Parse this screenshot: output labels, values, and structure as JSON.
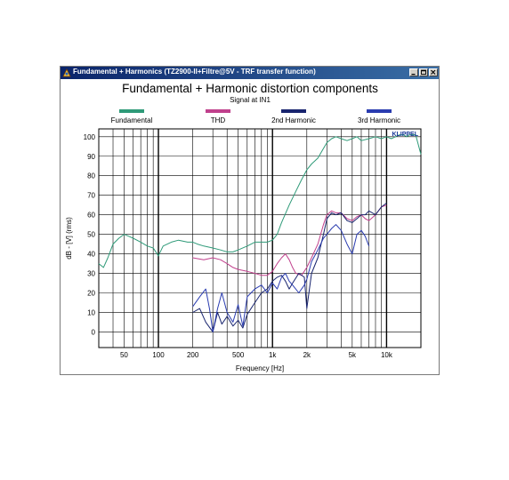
{
  "window": {
    "title": "Fundamental + Harmonics (TZ2900-II+Filtre@5V - TRF transfer function)",
    "buttons": {
      "minimize": "_",
      "maximize": "□",
      "close": "×"
    }
  },
  "logo": "KLIPPEL",
  "chart_data": {
    "type": "line",
    "title": "Fundamental + Harmonic distortion components",
    "subtitle": "Signal at IN1",
    "xlabel": "Frequency [Hz]",
    "ylabel": "dB - [V]  (rms)",
    "xscale": "log",
    "xlim": [
      30,
      20000
    ],
    "ylim": [
      -8,
      104
    ],
    "grid": true,
    "legend_position": "top",
    "x_ticks": [
      {
        "value": 50,
        "label": "50"
      },
      {
        "value": 100,
        "label": "100"
      },
      {
        "value": 200,
        "label": "200"
      },
      {
        "value": 500,
        "label": "500"
      },
      {
        "value": 1000,
        "label": "1k"
      },
      {
        "value": 2000,
        "label": "2k"
      },
      {
        "value": 5000,
        "label": "5k"
      },
      {
        "value": 10000,
        "label": "10k"
      }
    ],
    "y_ticks": [
      {
        "value": 100,
        "label": "100"
      },
      {
        "value": 90,
        "label": "90"
      },
      {
        "value": 80,
        "label": "80"
      },
      {
        "value": 70,
        "label": "70"
      },
      {
        "value": 60,
        "label": "60"
      },
      {
        "value": 50,
        "label": "50"
      },
      {
        "value": 40,
        "label": "40"
      },
      {
        "value": 30,
        "label": "30"
      },
      {
        "value": 20,
        "label": "20"
      },
      {
        "value": 10,
        "label": "10"
      },
      {
        "value": 0,
        "label": "0"
      }
    ],
    "series": [
      {
        "name": "Fundamental",
        "color": "#2e9a78",
        "x": [
          30,
          33,
          36,
          40,
          45,
          50,
          55,
          60,
          70,
          80,
          90,
          100,
          110,
          130,
          150,
          180,
          200,
          220,
          250,
          300,
          350,
          400,
          450,
          500,
          600,
          700,
          800,
          900,
          1000,
          1100,
          1200,
          1400,
          1600,
          1800,
          2000,
          2200,
          2500,
          2800,
          3000,
          3300,
          3600,
          4000,
          4500,
          5000,
          5500,
          6000,
          7000,
          8000,
          9000,
          10000,
          11000,
          12000,
          13000,
          14000,
          15000,
          16000,
          18000,
          20000
        ],
        "y": [
          35,
          33,
          38,
          45,
          48,
          50,
          49,
          48,
          46,
          44,
          43,
          39,
          44,
          46,
          47,
          46,
          46,
          45,
          44,
          43,
          42,
          41,
          41,
          42,
          44,
          46,
          46,
          46,
          47,
          50,
          56,
          65,
          72,
          78,
          83,
          86,
          89,
          94,
          97,
          99,
          100,
          99,
          98,
          99,
          100,
          98,
          99,
          100,
          99,
          100,
          99,
          100,
          101,
          101,
          100,
          101,
          101,
          91
        ]
      },
      {
        "name": "THD",
        "color": "#c0408c",
        "x": [
          200,
          250,
          300,
          350,
          400,
          450,
          500,
          600,
          700,
          800,
          900,
          1000,
          1100,
          1200,
          1300,
          1400,
          1500,
          1600,
          1800,
          2000,
          2200,
          2500,
          2800,
          3000,
          3300,
          3600,
          4000,
          4500,
          5000,
          5500,
          6000,
          6500,
          7000,
          8000,
          9000,
          10000
        ],
        "y": [
          38,
          37,
          38,
          37,
          35,
          33,
          32,
          31,
          30,
          29,
          29,
          31,
          35,
          38,
          40,
          37,
          33,
          30,
          29,
          33,
          38,
          45,
          55,
          60,
          62,
          61,
          61,
          58,
          57,
          59,
          60,
          58,
          57,
          60,
          64,
          65
        ]
      },
      {
        "name": "2nd Harmonic",
        "color": "#18246e",
        "x": [
          200,
          230,
          260,
          300,
          330,
          360,
          400,
          450,
          500,
          550,
          600,
          700,
          800,
          900,
          1000,
          1100,
          1200,
          1300,
          1400,
          1500,
          1700,
          1900,
          2000,
          2200,
          2500,
          2800,
          3000,
          3300,
          3600,
          4000,
          4500,
          5000,
          5500,
          6000,
          6500,
          7000,
          8000,
          9000,
          10000
        ],
        "y": [
          10,
          12,
          5,
          0,
          10,
          4,
          8,
          3,
          6,
          2,
          9,
          15,
          20,
          22,
          26,
          28,
          29,
          26,
          22,
          25,
          30,
          28,
          12,
          30,
          38,
          50,
          58,
          61,
          60,
          61,
          57,
          56,
          58,
          60,
          60,
          62,
          60,
          64,
          66
        ]
      },
      {
        "name": "3rd Harmonic",
        "color": "#2a3cb0",
        "x": [
          200,
          230,
          260,
          280,
          300,
          330,
          360,
          400,
          450,
          500,
          550,
          600,
          700,
          800,
          900,
          1000,
          1100,
          1200,
          1300,
          1400,
          1500,
          1700,
          1900,
          2000,
          2200,
          2500,
          2800,
          3000,
          3300,
          3600,
          4000,
          4500,
          5000,
          5500,
          6000,
          6500,
          7000
        ],
        "y": [
          13,
          18,
          22,
          12,
          0,
          12,
          20,
          10,
          5,
          14,
          3,
          18,
          22,
          24,
          20,
          25,
          22,
          28,
          30,
          26,
          24,
          20,
          24,
          27,
          36,
          42,
          48,
          50,
          53,
          55,
          52,
          45,
          40,
          50,
          52,
          49,
          44
        ]
      }
    ]
  }
}
